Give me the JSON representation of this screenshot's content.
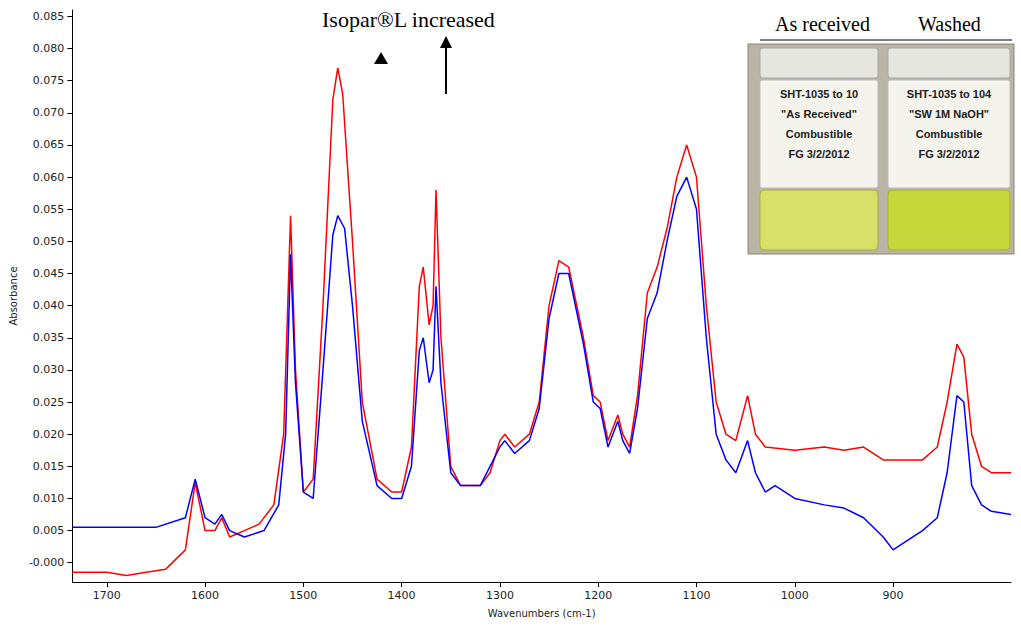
{
  "chart_data": {
    "type": "line",
    "x_label": "Wavenumbers (cm-1)",
    "y_label": "Absorbance",
    "xlim": [
      1735,
      780
    ],
    "xticks": [
      1700,
      1600,
      1500,
      1400,
      1300,
      1200,
      1100,
      1000,
      900
    ],
    "ylim": [
      -0.003,
      0.086
    ],
    "yticks": [
      {
        "value": 0,
        "label": "-0.000"
      },
      {
        "value": 0.005,
        "label": "0.005"
      },
      {
        "value": 0.01,
        "label": "0.010"
      },
      {
        "value": 0.015,
        "label": "0.015"
      },
      {
        "value": 0.02,
        "label": "0.020"
      },
      {
        "value": 0.025,
        "label": "0.025"
      },
      {
        "value": 0.03,
        "label": "0.030"
      },
      {
        "value": 0.035,
        "label": "0.035"
      },
      {
        "value": 0.04,
        "label": "0.040"
      },
      {
        "value": 0.045,
        "label": "0.045"
      },
      {
        "value": 0.05,
        "label": "0.050"
      },
      {
        "value": 0.055,
        "label": "0.055"
      },
      {
        "value": 0.06,
        "label": "0.060"
      },
      {
        "value": 0.065,
        "label": "0.065"
      },
      {
        "value": 0.07,
        "label": "0.070"
      },
      {
        "value": 0.075,
        "label": "0.075"
      },
      {
        "value": 0.08,
        "label": "0.080"
      },
      {
        "value": 0.085,
        "label": "0.085"
      }
    ],
    "grid": false,
    "marker": "none",
    "annotations": [
      {
        "text": "Isopar®L increased"
      }
    ],
    "series": [
      {
        "color": "#ff0000",
        "line_style": "solid",
        "x": [
          1735,
          1700,
          1680,
          1660,
          1640,
          1620,
          1610,
          1600,
          1590,
          1583,
          1575,
          1560,
          1545,
          1530,
          1520,
          1513,
          1508,
          1500,
          1490,
          1480,
          1470,
          1465,
          1460,
          1450,
          1440,
          1425,
          1410,
          1400,
          1390,
          1382,
          1378,
          1372,
          1368,
          1365,
          1360,
          1350,
          1340,
          1320,
          1310,
          1300,
          1295,
          1285,
          1270,
          1260,
          1250,
          1240,
          1230,
          1215,
          1205,
          1198,
          1190,
          1180,
          1175,
          1168,
          1160,
          1150,
          1140,
          1130,
          1120,
          1110,
          1100,
          1090,
          1080,
          1070,
          1060,
          1048,
          1040,
          1030,
          1000,
          970,
          950,
          930,
          910,
          890,
          870,
          855,
          845,
          835,
          828,
          820,
          810,
          800,
          780
        ],
        "values": [
          -0.0015,
          -0.0015,
          -0.002,
          -0.0015,
          -0.001,
          0.002,
          0.0125,
          0.005,
          0.005,
          0.007,
          0.004,
          0.005,
          0.006,
          0.009,
          0.02,
          0.054,
          0.03,
          0.011,
          0.013,
          0.04,
          0.072,
          0.077,
          0.073,
          0.05,
          0.025,
          0.013,
          0.011,
          0.011,
          0.018,
          0.043,
          0.046,
          0.037,
          0.04,
          0.058,
          0.035,
          0.015,
          0.012,
          0.012,
          0.014,
          0.019,
          0.02,
          0.018,
          0.02,
          0.025,
          0.04,
          0.047,
          0.046,
          0.035,
          0.026,
          0.025,
          0.019,
          0.023,
          0.02,
          0.018,
          0.026,
          0.042,
          0.046,
          0.052,
          0.06,
          0.065,
          0.06,
          0.04,
          0.025,
          0.02,
          0.019,
          0.026,
          0.02,
          0.018,
          0.0175,
          0.018,
          0.0175,
          0.018,
          0.016,
          0.016,
          0.016,
          0.018,
          0.025,
          0.034,
          0.032,
          0.02,
          0.015,
          0.014,
          0.014
        ]
      },
      {
        "color": "#0000ff",
        "line_style": "solid",
        "x": [
          1735,
          1700,
          1650,
          1620,
          1610,
          1600,
          1590,
          1583,
          1575,
          1560,
          1540,
          1525,
          1518,
          1513,
          1508,
          1500,
          1490,
          1480,
          1470,
          1465,
          1458,
          1450,
          1440,
          1425,
          1410,
          1400,
          1390,
          1382,
          1378,
          1372,
          1368,
          1365,
          1360,
          1350,
          1340,
          1320,
          1300,
          1295,
          1285,
          1270,
          1260,
          1250,
          1240,
          1230,
          1215,
          1205,
          1198,
          1190,
          1180,
          1175,
          1168,
          1160,
          1150,
          1140,
          1130,
          1120,
          1110,
          1100,
          1090,
          1080,
          1070,
          1060,
          1048,
          1040,
          1030,
          1020,
          1000,
          970,
          950,
          930,
          910,
          900,
          890,
          870,
          855,
          845,
          835,
          828,
          820,
          810,
          800,
          780
        ],
        "values": [
          0.0055,
          0.0055,
          0.0055,
          0.007,
          0.013,
          0.007,
          0.006,
          0.0075,
          0.005,
          0.004,
          0.005,
          0.009,
          0.02,
          0.048,
          0.028,
          0.011,
          0.01,
          0.03,
          0.051,
          0.054,
          0.052,
          0.04,
          0.022,
          0.012,
          0.01,
          0.01,
          0.015,
          0.033,
          0.035,
          0.028,
          0.03,
          0.043,
          0.028,
          0.014,
          0.012,
          0.012,
          0.018,
          0.019,
          0.017,
          0.019,
          0.024,
          0.038,
          0.045,
          0.045,
          0.034,
          0.025,
          0.024,
          0.018,
          0.022,
          0.019,
          0.017,
          0.024,
          0.038,
          0.042,
          0.05,
          0.057,
          0.06,
          0.055,
          0.035,
          0.02,
          0.016,
          0.014,
          0.019,
          0.014,
          0.011,
          0.012,
          0.01,
          0.009,
          0.0085,
          0.007,
          0.004,
          0.002,
          0.003,
          0.005,
          0.007,
          0.014,
          0.026,
          0.025,
          0.012,
          0.009,
          0.008,
          0.0075
        ]
      }
    ]
  },
  "inset": {
    "captions": [
      "As received",
      "Washed"
    ],
    "bottle_labels": [
      [
        "SHT-1035 to 10",
        "\"As Received\"",
        "Combustible",
        "FG 3/2/2012"
      ],
      [
        "SHT-1035 to 104",
        "\"SW 1M NaOH\"",
        "Combustible",
        "FG 3/2/2012"
      ]
    ]
  }
}
